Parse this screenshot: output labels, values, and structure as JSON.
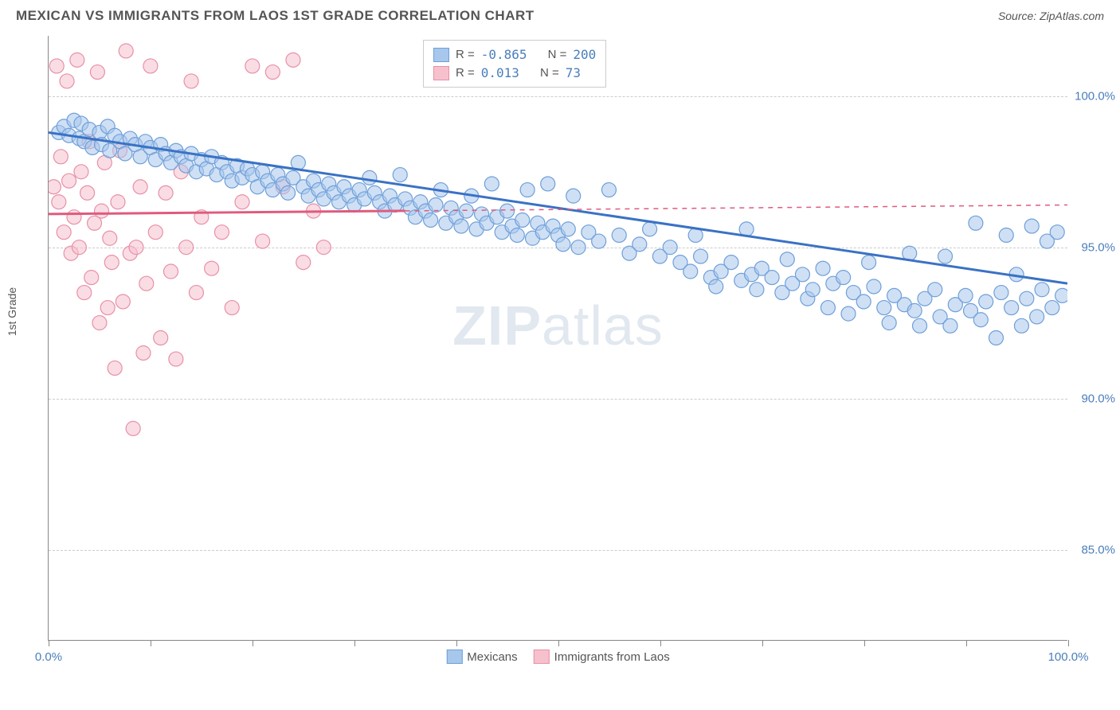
{
  "header": {
    "title": "MEXICAN VS IMMIGRANTS FROM LAOS 1ST GRADE CORRELATION CHART",
    "source": "Source: ZipAtlas.com"
  },
  "chart": {
    "type": "scatter",
    "ylabel": "1st Grade",
    "xlim": [
      0,
      100
    ],
    "ylim": [
      82,
      102
    ],
    "xtick_positions": [
      0,
      10,
      20,
      30,
      40,
      50,
      60,
      70,
      80,
      90,
      100
    ],
    "xtick_labels_shown": {
      "0": "0.0%",
      "100": "100.0%"
    },
    "ytick_positions": [
      85,
      90,
      95,
      100
    ],
    "ytick_labels": [
      "85.0%",
      "90.0%",
      "95.0%",
      "100.0%"
    ],
    "background_color": "#ffffff",
    "grid_color": "#cccccc",
    "axis_color": "#888888",
    "marker_radius": 9,
    "marker_opacity": 0.55,
    "line_width": 3,
    "series": [
      {
        "name": "Mexicans",
        "color_fill": "#a7c7ec",
        "color_stroke": "#6f9fd8",
        "line_color": "#3a72c4",
        "R": "-0.865",
        "N": "200",
        "trend": {
          "x1": 0,
          "y1": 98.8,
          "x2": 100,
          "y2": 93.8,
          "dash": false
        },
        "points": [
          [
            1,
            98.8
          ],
          [
            1.5,
            99.0
          ],
          [
            2,
            98.7
          ],
          [
            2.5,
            99.2
          ],
          [
            3,
            98.6
          ],
          [
            3.2,
            99.1
          ],
          [
            3.5,
            98.5
          ],
          [
            4,
            98.9
          ],
          [
            4.3,
            98.3
          ],
          [
            5,
            98.8
          ],
          [
            5.2,
            98.4
          ],
          [
            5.8,
            99.0
          ],
          [
            6,
            98.2
          ],
          [
            6.5,
            98.7
          ],
          [
            7,
            98.5
          ],
          [
            7.5,
            98.1
          ],
          [
            8,
            98.6
          ],
          [
            8.5,
            98.4
          ],
          [
            9,
            98.0
          ],
          [
            9.5,
            98.5
          ],
          [
            10,
            98.3
          ],
          [
            10.5,
            97.9
          ],
          [
            11,
            98.4
          ],
          [
            11.5,
            98.1
          ],
          [
            12,
            97.8
          ],
          [
            12.5,
            98.2
          ],
          [
            13,
            98.0
          ],
          [
            13.5,
            97.7
          ],
          [
            14,
            98.1
          ],
          [
            14.5,
            97.5
          ],
          [
            15,
            97.9
          ],
          [
            15.5,
            97.6
          ],
          [
            16,
            98.0
          ],
          [
            16.5,
            97.4
          ],
          [
            17,
            97.8
          ],
          [
            17.5,
            97.5
          ],
          [
            18,
            97.2
          ],
          [
            18.5,
            97.7
          ],
          [
            19,
            97.3
          ],
          [
            19.5,
            97.6
          ],
          [
            20,
            97.4
          ],
          [
            20.5,
            97.0
          ],
          [
            21,
            97.5
          ],
          [
            21.5,
            97.2
          ],
          [
            22,
            96.9
          ],
          [
            22.5,
            97.4
          ],
          [
            23,
            97.1
          ],
          [
            23.5,
            96.8
          ],
          [
            24,
            97.3
          ],
          [
            24.5,
            97.8
          ],
          [
            25,
            97.0
          ],
          [
            25.5,
            96.7
          ],
          [
            26,
            97.2
          ],
          [
            26.5,
            96.9
          ],
          [
            27,
            96.6
          ],
          [
            27.5,
            97.1
          ],
          [
            28,
            96.8
          ],
          [
            28.5,
            96.5
          ],
          [
            29,
            97.0
          ],
          [
            29.5,
            96.7
          ],
          [
            30,
            96.4
          ],
          [
            30.5,
            96.9
          ],
          [
            31,
            96.6
          ],
          [
            31.5,
            97.3
          ],
          [
            32,
            96.8
          ],
          [
            32.5,
            96.5
          ],
          [
            33,
            96.2
          ],
          [
            33.5,
            96.7
          ],
          [
            34,
            96.4
          ],
          [
            34.5,
            97.4
          ],
          [
            35,
            96.6
          ],
          [
            35.5,
            96.3
          ],
          [
            36,
            96.0
          ],
          [
            36.5,
            96.5
          ],
          [
            37,
            96.2
          ],
          [
            37.5,
            95.9
          ],
          [
            38,
            96.4
          ],
          [
            38.5,
            96.9
          ],
          [
            39,
            95.8
          ],
          [
            39.5,
            96.3
          ],
          [
            40,
            96.0
          ],
          [
            40.5,
            95.7
          ],
          [
            41,
            96.2
          ],
          [
            41.5,
            96.7
          ],
          [
            42,
            95.6
          ],
          [
            42.5,
            96.1
          ],
          [
            43,
            95.8
          ],
          [
            43.5,
            97.1
          ],
          [
            44,
            96.0
          ],
          [
            44.5,
            95.5
          ],
          [
            45,
            96.2
          ],
          [
            45.5,
            95.7
          ],
          [
            46,
            95.4
          ],
          [
            46.5,
            95.9
          ],
          [
            47,
            96.9
          ],
          [
            47.5,
            95.3
          ],
          [
            48,
            95.8
          ],
          [
            48.5,
            95.5
          ],
          [
            49,
            97.1
          ],
          [
            49.5,
            95.7
          ],
          [
            50,
            95.4
          ],
          [
            50.5,
            95.1
          ],
          [
            51,
            95.6
          ],
          [
            51.5,
            96.7
          ],
          [
            52,
            95.0
          ],
          [
            53,
            95.5
          ],
          [
            54,
            95.2
          ],
          [
            55,
            96.9
          ],
          [
            56,
            95.4
          ],
          [
            57,
            94.8
          ],
          [
            58,
            95.1
          ],
          [
            59,
            95.6
          ],
          [
            60,
            94.7
          ],
          [
            61,
            95.0
          ],
          [
            62,
            94.5
          ],
          [
            63,
            94.2
          ],
          [
            63.5,
            95.4
          ],
          [
            64,
            94.7
          ],
          [
            65,
            94.0
          ],
          [
            65.5,
            93.7
          ],
          [
            66,
            94.2
          ],
          [
            67,
            94.5
          ],
          [
            68,
            93.9
          ],
          [
            68.5,
            95.6
          ],
          [
            69,
            94.1
          ],
          [
            69.5,
            93.6
          ],
          [
            70,
            94.3
          ],
          [
            71,
            94.0
          ],
          [
            72,
            93.5
          ],
          [
            72.5,
            94.6
          ],
          [
            73,
            93.8
          ],
          [
            74,
            94.1
          ],
          [
            74.5,
            93.3
          ],
          [
            75,
            93.6
          ],
          [
            76,
            94.3
          ],
          [
            76.5,
            93.0
          ],
          [
            77,
            93.8
          ],
          [
            78,
            94.0
          ],
          [
            78.5,
            92.8
          ],
          [
            79,
            93.5
          ],
          [
            80,
            93.2
          ],
          [
            80.5,
            94.5
          ],
          [
            81,
            93.7
          ],
          [
            82,
            93.0
          ],
          [
            82.5,
            92.5
          ],
          [
            83,
            93.4
          ],
          [
            84,
            93.1
          ],
          [
            84.5,
            94.8
          ],
          [
            85,
            92.9
          ],
          [
            85.5,
            92.4
          ],
          [
            86,
            93.3
          ],
          [
            87,
            93.6
          ],
          [
            87.5,
            92.7
          ],
          [
            88,
            94.7
          ],
          [
            88.5,
            92.4
          ],
          [
            89,
            93.1
          ],
          [
            90,
            93.4
          ],
          [
            90.5,
            92.9
          ],
          [
            91,
            95.8
          ],
          [
            91.5,
            92.6
          ],
          [
            92,
            93.2
          ],
          [
            93,
            92.0
          ],
          [
            93.5,
            93.5
          ],
          [
            94,
            95.4
          ],
          [
            94.5,
            93.0
          ],
          [
            95,
            94.1
          ],
          [
            95.5,
            92.4
          ],
          [
            96,
            93.3
          ],
          [
            96.5,
            95.7
          ],
          [
            97,
            92.7
          ],
          [
            97.5,
            93.6
          ],
          [
            98,
            95.2
          ],
          [
            98.5,
            93.0
          ],
          [
            99,
            95.5
          ],
          [
            99.5,
            93.4
          ]
        ]
      },
      {
        "name": "Immigrants from Laos",
        "color_fill": "#f6c1cd",
        "color_stroke": "#e890a6",
        "line_color": "#e05a7d",
        "R": "0.013",
        "N": "73",
        "trend": {
          "x1": 0,
          "y1": 96.1,
          "x2": 100,
          "y2": 96.4,
          "dash_after": 35
        },
        "points": [
          [
            0.5,
            97.0
          ],
          [
            0.8,
            101.0
          ],
          [
            1,
            96.5
          ],
          [
            1.2,
            98.0
          ],
          [
            1.5,
            95.5
          ],
          [
            1.8,
            100.5
          ],
          [
            2,
            97.2
          ],
          [
            2.2,
            94.8
          ],
          [
            2.5,
            96.0
          ],
          [
            2.8,
            101.2
          ],
          [
            3,
            95.0
          ],
          [
            3.2,
            97.5
          ],
          [
            3.5,
            93.5
          ],
          [
            3.8,
            96.8
          ],
          [
            4,
            98.5
          ],
          [
            4.2,
            94.0
          ],
          [
            4.5,
            95.8
          ],
          [
            4.8,
            100.8
          ],
          [
            5,
            92.5
          ],
          [
            5.2,
            96.2
          ],
          [
            5.5,
            97.8
          ],
          [
            5.8,
            93.0
          ],
          [
            6,
            95.3
          ],
          [
            6.2,
            94.5
          ],
          [
            6.5,
            91.0
          ],
          [
            6.8,
            96.5
          ],
          [
            7,
            98.2
          ],
          [
            7.3,
            93.2
          ],
          [
            7.6,
            101.5
          ],
          [
            8,
            94.8
          ],
          [
            8.3,
            89.0
          ],
          [
            8.6,
            95.0
          ],
          [
            9,
            97.0
          ],
          [
            9.3,
            91.5
          ],
          [
            9.6,
            93.8
          ],
          [
            10,
            101.0
          ],
          [
            10.5,
            95.5
          ],
          [
            11,
            92.0
          ],
          [
            11.5,
            96.8
          ],
          [
            12,
            94.2
          ],
          [
            12.5,
            91.3
          ],
          [
            13,
            97.5
          ],
          [
            13.5,
            95.0
          ],
          [
            14,
            100.5
          ],
          [
            14.5,
            93.5
          ],
          [
            15,
            96.0
          ],
          [
            16,
            94.3
          ],
          [
            17,
            95.5
          ],
          [
            18,
            93.0
          ],
          [
            19,
            96.5
          ],
          [
            20,
            101.0
          ],
          [
            21,
            95.2
          ],
          [
            22,
            100.8
          ],
          [
            23,
            97.0
          ],
          [
            24,
            101.2
          ],
          [
            25,
            94.5
          ],
          [
            26,
            96.2
          ],
          [
            27,
            95.0
          ]
        ]
      }
    ],
    "legend_bottom": [
      {
        "swatch_fill": "#a7c7ec",
        "swatch_stroke": "#6f9fd8",
        "label": "Mexicans"
      },
      {
        "swatch_fill": "#f6c1cd",
        "swatch_stroke": "#e890a6",
        "label": "Immigrants from Laos"
      }
    ],
    "watermark": {
      "part1": "ZIP",
      "part2": "atlas"
    },
    "legend_top": [
      {
        "swatch_fill": "#a7c7ec",
        "swatch_stroke": "#6f9fd8",
        "r_label": "R =",
        "r_val": "-0.865",
        "n_label": "N =",
        "n_val": "200"
      },
      {
        "swatch_fill": "#f6c1cd",
        "swatch_stroke": "#e890a6",
        "r_label": "R =",
        "r_val": " 0.013",
        "n_label": "N =",
        "n_val": " 73"
      }
    ]
  }
}
